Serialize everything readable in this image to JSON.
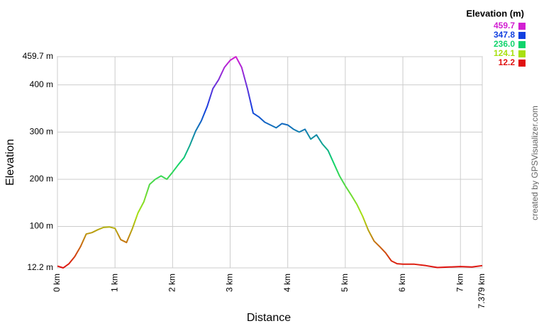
{
  "chart_data": {
    "type": "line",
    "x_label": "Distance",
    "y_label": "Elevation",
    "legend_title": "Elevation (m)",
    "credit": "created by GPSVisualizer.com",
    "x": [
      0,
      0.1,
      0.2,
      0.3,
      0.4,
      0.5,
      0.6,
      0.7,
      0.8,
      0.9,
      1.0,
      1.1,
      1.2,
      1.3,
      1.4,
      1.5,
      1.6,
      1.7,
      1.8,
      1.9,
      2.0,
      2.1,
      2.2,
      2.3,
      2.4,
      2.5,
      2.6,
      2.7,
      2.8,
      2.9,
      3.0,
      3.1,
      3.2,
      3.3,
      3.4,
      3.5,
      3.6,
      3.7,
      3.8,
      3.9,
      4.0,
      4.1,
      4.2,
      4.3,
      4.4,
      4.5,
      4.6,
      4.7,
      4.8,
      4.9,
      5.0,
      5.1,
      5.2,
      5.3,
      5.4,
      5.5,
      5.6,
      5.7,
      5.8,
      5.9,
      6.0,
      6.2,
      6.4,
      6.6,
      6.8,
      7.0,
      7.2,
      7.379
    ],
    "series": [
      {
        "name": "Elevation",
        "values": [
          16,
          12.2,
          21,
          36,
          57,
          84,
          87,
          93,
          98,
          99,
          96,
          72,
          66,
          95,
          129,
          152,
          189,
          200,
          207,
          200,
          215,
          231,
          246,
          272,
          302,
          324,
          354,
          392,
          411,
          437,
          452,
          459.7,
          437,
          392,
          340,
          332,
          321,
          315,
          309,
          318,
          315,
          306,
          300,
          306,
          285,
          294,
          275,
          261,
          234,
          207,
          186,
          167,
          147,
          122,
          92,
          69,
          57,
          44,
          27,
          21,
          20,
          20,
          17,
          13,
          14,
          15,
          14,
          17
        ]
      }
    ],
    "color_scale": [
      {
        "value": 459.7,
        "label": "459.7",
        "color": "#d21fd2"
      },
      {
        "value": 347.8,
        "label": "347.8",
        "color": "#1240e0"
      },
      {
        "value": 236,
        "label": "236.0",
        "color": "#10d46c"
      },
      {
        "value": 124.1,
        "label": "124.1",
        "color": "#a8e010"
      },
      {
        "value": 12.2,
        "label": "12.2",
        "color": "#e01010"
      }
    ],
    "xlim": [
      0,
      7.379
    ],
    "xticks": [
      {
        "value": 0,
        "label": "0 km"
      },
      {
        "value": 1,
        "label": "1 km"
      },
      {
        "value": 2,
        "label": "2 km"
      },
      {
        "value": 3,
        "label": "3 km"
      },
      {
        "value": 4,
        "label": "4 km"
      },
      {
        "value": 5,
        "label": "5 km"
      },
      {
        "value": 6,
        "label": "6 km"
      },
      {
        "value": 7,
        "label": "7 km"
      },
      {
        "value": 7.379,
        "label": "7.379 km"
      }
    ],
    "ylim": [
      12.2,
      459.7
    ],
    "yticks": [
      {
        "value": 12.2,
        "label": "12.2 m"
      },
      {
        "value": 100,
        "label": "100 m"
      },
      {
        "value": 200,
        "label": "200 m"
      },
      {
        "value": 300,
        "label": "300 m"
      },
      {
        "value": 400,
        "label": "400 m"
      },
      {
        "value": 459.7,
        "label": "459.7 m"
      }
    ],
    "grid": true
  }
}
